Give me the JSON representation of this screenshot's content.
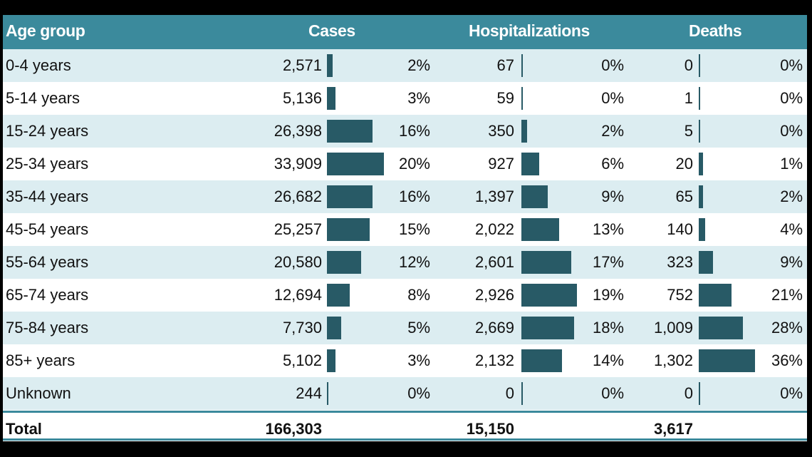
{
  "chart_data": {
    "type": "table",
    "columns": [
      "Age group",
      "Cases",
      "Hospitalizations",
      "Deaths"
    ],
    "rows": [
      {
        "label": "0-4 years",
        "cases": "2,571",
        "cases_pct": "2%",
        "cases_v": 2,
        "hosp": "67",
        "hosp_pct": "0%",
        "hosp_v": 0,
        "deaths": "0",
        "deaths_pct": "0%",
        "deaths_v": 0
      },
      {
        "label": "5-14 years",
        "cases": "5,136",
        "cases_pct": "3%",
        "cases_v": 3,
        "hosp": "59",
        "hosp_pct": "0%",
        "hosp_v": 0,
        "deaths": "1",
        "deaths_pct": "0%",
        "deaths_v": 0
      },
      {
        "label": "15-24 years",
        "cases": "26,398",
        "cases_pct": "16%",
        "cases_v": 16,
        "hosp": "350",
        "hosp_pct": "2%",
        "hosp_v": 2,
        "deaths": "5",
        "deaths_pct": "0%",
        "deaths_v": 0
      },
      {
        "label": "25-34 years",
        "cases": "33,909",
        "cases_pct": "20%",
        "cases_v": 20,
        "hosp": "927",
        "hosp_pct": "6%",
        "hosp_v": 6,
        "deaths": "20",
        "deaths_pct": "1%",
        "deaths_v": 1
      },
      {
        "label": "35-44 years",
        "cases": "26,682",
        "cases_pct": "16%",
        "cases_v": 16,
        "hosp": "1,397",
        "hosp_pct": "9%",
        "hosp_v": 9,
        "deaths": "65",
        "deaths_pct": "2%",
        "deaths_v": 2
      },
      {
        "label": "45-54 years",
        "cases": "25,257",
        "cases_pct": "15%",
        "cases_v": 15,
        "hosp": "2,022",
        "hosp_pct": "13%",
        "hosp_v": 13,
        "deaths": "140",
        "deaths_pct": "4%",
        "deaths_v": 4
      },
      {
        "label": "55-64 years",
        "cases": "20,580",
        "cases_pct": "12%",
        "cases_v": 12,
        "hosp": "2,601",
        "hosp_pct": "17%",
        "hosp_v": 17,
        "deaths": "323",
        "deaths_pct": "9%",
        "deaths_v": 9
      },
      {
        "label": "65-74 years",
        "cases": "12,694",
        "cases_pct": "8%",
        "cases_v": 8,
        "hosp": "2,926",
        "hosp_pct": "19%",
        "hosp_v": 19,
        "deaths": "752",
        "deaths_pct": "21%",
        "deaths_v": 21
      },
      {
        "label": "75-84 years",
        "cases": "7,730",
        "cases_pct": "5%",
        "cases_v": 5,
        "hosp": "2,669",
        "hosp_pct": "18%",
        "hosp_v": 18,
        "deaths": "1,009",
        "deaths_pct": "28%",
        "deaths_v": 28
      },
      {
        "label": "85+ years",
        "cases": "5,102",
        "cases_pct": "3%",
        "cases_v": 3,
        "hosp": "2,132",
        "hosp_pct": "14%",
        "hosp_v": 14,
        "deaths": "1,302",
        "deaths_pct": "36%",
        "deaths_v": 36
      },
      {
        "label": "Unknown",
        "cases": "244",
        "cases_pct": "0%",
        "cases_v": 0,
        "hosp": "0",
        "hosp_pct": "0%",
        "hosp_v": 0,
        "deaths": "0",
        "deaths_pct": "0%",
        "deaths_v": 0
      }
    ],
    "total": {
      "label": "Total",
      "cases": "166,303",
      "hosp": "15,150",
      "deaths": "3,617"
    },
    "colors": {
      "header": "#3b8a9c",
      "bar": "#285a66",
      "shade": "#dcedf1"
    }
  }
}
